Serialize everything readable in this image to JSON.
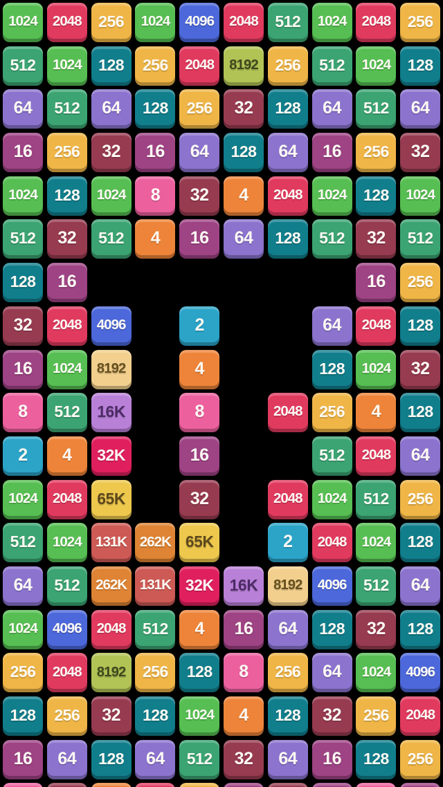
{
  "board": {
    "columns": 10,
    "visible_full_rows": 18,
    "background_color": "#000000",
    "palette": {
      "v2": {
        "bg": "#2BA4C8",
        "text": "#FCF9F4"
      },
      "v4": {
        "bg": "#ED8439",
        "text": "#FCF9F4"
      },
      "v8": {
        "bg": "#EC609E",
        "text": "#FCF9F4"
      },
      "v16": {
        "bg": "#9E4384",
        "text": "#FCF9F4"
      },
      "v32": {
        "bg": "#973B50",
        "text": "#FCF9F4"
      },
      "v64": {
        "bg": "#8B73CE",
        "text": "#FCF9F4"
      },
      "v128": {
        "bg": "#117E8C",
        "text": "#FCF9F4"
      },
      "v256": {
        "bg": "#EFB546",
        "text": "#FCF9F4"
      },
      "v512": {
        "bg": "#3BA472",
        "text": "#FCF9F4"
      },
      "v1024": {
        "bg": "#56BE52",
        "text": "#FCF9F4"
      },
      "v2048": {
        "bg": "#E13A5F",
        "text": "#FCF9F4"
      },
      "v4096": {
        "bg": "#4C68DA",
        "text": "#FCF9F4"
      },
      "v8192o": {
        "bg": "#B2C355",
        "text": "#3E491D"
      },
      "v8192t": {
        "bg": "#F2CF8D",
        "text": "#66501E"
      },
      "v16k": {
        "bg": "#B980D8",
        "text": "#4D2B66"
      },
      "v32k": {
        "bg": "#E0205E",
        "text": "#FCF9F4"
      },
      "v65k": {
        "bg": "#EDC84D",
        "text": "#5E481C"
      },
      "v131k": {
        "bg": "#CD5A55",
        "text": "#FCF9F4"
      },
      "v262k": {
        "bg": "#DE8434",
        "text": "#FCF9F4"
      }
    },
    "rows": [
      {
        "cells": [
          {
            "v": "1024",
            "c": "v1024"
          },
          {
            "v": "2048",
            "c": "v2048"
          },
          {
            "v": "256",
            "c": "v256"
          },
          {
            "v": "1024",
            "c": "v1024"
          },
          {
            "v": "4096",
            "c": "v4096"
          },
          {
            "v": "2048",
            "c": "v2048"
          },
          {
            "v": "512",
            "c": "v512"
          },
          {
            "v": "1024",
            "c": "v1024"
          },
          {
            "v": "2048",
            "c": "v2048"
          },
          {
            "v": "256",
            "c": "v256"
          }
        ]
      },
      {
        "cells": [
          {
            "v": "512",
            "c": "v512"
          },
          {
            "v": "1024",
            "c": "v1024"
          },
          {
            "v": "128",
            "c": "v128"
          },
          {
            "v": "256",
            "c": "v256"
          },
          {
            "v": "2048",
            "c": "v2048"
          },
          {
            "v": "8192",
            "c": "v8192o"
          },
          {
            "v": "256",
            "c": "v256"
          },
          {
            "v": "512",
            "c": "v512"
          },
          {
            "v": "1024",
            "c": "v1024"
          },
          {
            "v": "128",
            "c": "v128"
          }
        ]
      },
      {
        "cells": [
          {
            "v": "64",
            "c": "v64"
          },
          {
            "v": "512",
            "c": "v512"
          },
          {
            "v": "64",
            "c": "v64"
          },
          {
            "v": "128",
            "c": "v128"
          },
          {
            "v": "256",
            "c": "v256"
          },
          {
            "v": "32",
            "c": "v32"
          },
          {
            "v": "128",
            "c": "v128"
          },
          {
            "v": "64",
            "c": "v64"
          },
          {
            "v": "512",
            "c": "v512"
          },
          {
            "v": "64",
            "c": "v64"
          }
        ]
      },
      {
        "cells": [
          {
            "v": "16",
            "c": "v16"
          },
          {
            "v": "256",
            "c": "v256"
          },
          {
            "v": "32",
            "c": "v32"
          },
          {
            "v": "16",
            "c": "v16"
          },
          {
            "v": "64",
            "c": "v64"
          },
          {
            "v": "128",
            "c": "v128"
          },
          {
            "v": "64",
            "c": "v64"
          },
          {
            "v": "16",
            "c": "v16"
          },
          {
            "v": "256",
            "c": "v256"
          },
          {
            "v": "32",
            "c": "v32"
          }
        ]
      },
      {
        "cells": [
          {
            "v": "1024",
            "c": "v1024"
          },
          {
            "v": "128",
            "c": "v128"
          },
          {
            "v": "1024",
            "c": "v1024"
          },
          {
            "v": "8",
            "c": "v8"
          },
          {
            "v": "32",
            "c": "v32"
          },
          {
            "v": "4",
            "c": "v4"
          },
          {
            "v": "2048",
            "c": "v2048"
          },
          {
            "v": "1024",
            "c": "v1024"
          },
          {
            "v": "128",
            "c": "v128"
          },
          {
            "v": "1024",
            "c": "v1024"
          }
        ]
      },
      {
        "cells": [
          {
            "v": "512",
            "c": "v512"
          },
          {
            "v": "32",
            "c": "v32"
          },
          {
            "v": "512",
            "c": "v512"
          },
          {
            "v": "4",
            "c": "v4"
          },
          {
            "v": "16",
            "c": "v16"
          },
          {
            "v": "64",
            "c": "v64"
          },
          {
            "v": "128",
            "c": "v128"
          },
          {
            "v": "512",
            "c": "v512"
          },
          {
            "v": "32",
            "c": "v32"
          },
          {
            "v": "512",
            "c": "v512"
          }
        ]
      },
      {
        "cells": [
          {
            "v": "128",
            "c": "v128"
          },
          {
            "v": "16",
            "c": "v16"
          },
          null,
          null,
          null,
          null,
          null,
          null,
          {
            "v": "16",
            "c": "v16"
          },
          {
            "v": "256",
            "c": "v256"
          }
        ]
      },
      {
        "cells": [
          {
            "v": "32",
            "c": "v32"
          },
          {
            "v": "2048",
            "c": "v2048"
          },
          {
            "v": "4096",
            "c": "v4096"
          },
          null,
          {
            "v": "2",
            "c": "v2"
          },
          null,
          null,
          {
            "v": "64",
            "c": "v64"
          },
          {
            "v": "2048",
            "c": "v2048"
          },
          {
            "v": "128",
            "c": "v128"
          }
        ]
      },
      {
        "cells": [
          {
            "v": "16",
            "c": "v16"
          },
          {
            "v": "1024",
            "c": "v1024"
          },
          {
            "v": "8192",
            "c": "v8192t"
          },
          null,
          {
            "v": "4",
            "c": "v4"
          },
          null,
          null,
          {
            "v": "128",
            "c": "v128"
          },
          {
            "v": "1024",
            "c": "v1024"
          },
          {
            "v": "32",
            "c": "v32"
          }
        ]
      },
      {
        "cells": [
          {
            "v": "8",
            "c": "v8"
          },
          {
            "v": "512",
            "c": "v512"
          },
          {
            "v": "16K",
            "c": "v16k"
          },
          null,
          {
            "v": "8",
            "c": "v8"
          },
          null,
          {
            "v": "2048",
            "c": "v2048"
          },
          {
            "v": "256",
            "c": "v256"
          },
          {
            "v": "4",
            "c": "v4"
          },
          {
            "v": "128",
            "c": "v128"
          }
        ]
      },
      {
        "cells": [
          {
            "v": "2",
            "c": "v2"
          },
          {
            "v": "4",
            "c": "v4"
          },
          {
            "v": "32K",
            "c": "v32k"
          },
          null,
          {
            "v": "16",
            "c": "v16"
          },
          null,
          null,
          {
            "v": "512",
            "c": "v512"
          },
          {
            "v": "2048",
            "c": "v2048"
          },
          {
            "v": "64",
            "c": "v64"
          }
        ]
      },
      {
        "cells": [
          {
            "v": "1024",
            "c": "v1024"
          },
          {
            "v": "2048",
            "c": "v2048"
          },
          {
            "v": "65K",
            "c": "v65k"
          },
          null,
          {
            "v": "32",
            "c": "v32"
          },
          null,
          {
            "v": "2048",
            "c": "v2048"
          },
          {
            "v": "1024",
            "c": "v1024"
          },
          {
            "v": "512",
            "c": "v512"
          },
          {
            "v": "256",
            "c": "v256"
          }
        ]
      },
      {
        "cells": [
          {
            "v": "512",
            "c": "v512"
          },
          {
            "v": "1024",
            "c": "v1024"
          },
          {
            "v": "131K",
            "c": "v131k"
          },
          {
            "v": "262K",
            "c": "v262k"
          },
          {
            "v": "65K",
            "c": "v65k"
          },
          null,
          {
            "v": "2",
            "c": "v2"
          },
          {
            "v": "2048",
            "c": "v2048"
          },
          {
            "v": "1024",
            "c": "v1024"
          },
          {
            "v": "128",
            "c": "v128"
          }
        ]
      },
      {
        "cells": [
          {
            "v": "64",
            "c": "v64"
          },
          {
            "v": "512",
            "c": "v512"
          },
          {
            "v": "262K",
            "c": "v262k"
          },
          {
            "v": "131K",
            "c": "v131k"
          },
          {
            "v": "32K",
            "c": "v32k"
          },
          {
            "v": "16K",
            "c": "v16k"
          },
          {
            "v": "8192",
            "c": "v8192t"
          },
          {
            "v": "4096",
            "c": "v4096"
          },
          {
            "v": "512",
            "c": "v512"
          },
          {
            "v": "64",
            "c": "v64"
          }
        ]
      },
      {
        "cells": [
          {
            "v": "1024",
            "c": "v1024"
          },
          {
            "v": "4096",
            "c": "v4096"
          },
          {
            "v": "2048",
            "c": "v2048"
          },
          {
            "v": "512",
            "c": "v512"
          },
          {
            "v": "4",
            "c": "v4"
          },
          {
            "v": "16",
            "c": "v16"
          },
          {
            "v": "64",
            "c": "v64"
          },
          {
            "v": "128",
            "c": "v128"
          },
          {
            "v": "32",
            "c": "v32"
          },
          {
            "v": "128",
            "c": "v128"
          }
        ]
      },
      {
        "cells": [
          {
            "v": "256",
            "c": "v256"
          },
          {
            "v": "2048",
            "c": "v2048"
          },
          {
            "v": "8192",
            "c": "v8192o"
          },
          {
            "v": "256",
            "c": "v256"
          },
          {
            "v": "128",
            "c": "v128"
          },
          {
            "v": "8",
            "c": "v8"
          },
          {
            "v": "256",
            "c": "v256"
          },
          {
            "v": "64",
            "c": "v64"
          },
          {
            "v": "1024",
            "c": "v1024"
          },
          {
            "v": "4096",
            "c": "v4096"
          }
        ]
      },
      {
        "cells": [
          {
            "v": "128",
            "c": "v128"
          },
          {
            "v": "256",
            "c": "v256"
          },
          {
            "v": "32",
            "c": "v32"
          },
          {
            "v": "128",
            "c": "v128"
          },
          {
            "v": "1024",
            "c": "v1024"
          },
          {
            "v": "4",
            "c": "v4"
          },
          {
            "v": "128",
            "c": "v128"
          },
          {
            "v": "32",
            "c": "v32"
          },
          {
            "v": "256",
            "c": "v256"
          },
          {
            "v": "2048",
            "c": "v2048"
          }
        ]
      },
      {
        "cells": [
          {
            "v": "16",
            "c": "v16"
          },
          {
            "v": "64",
            "c": "v64"
          },
          {
            "v": "128",
            "c": "v128"
          },
          {
            "v": "64",
            "c": "v64"
          },
          {
            "v": "512",
            "c": "v512"
          },
          {
            "v": "32",
            "c": "v32"
          },
          {
            "v": "64",
            "c": "v64"
          },
          {
            "v": "16",
            "c": "v16"
          },
          {
            "v": "128",
            "c": "v128"
          },
          {
            "v": "256",
            "c": "v256"
          }
        ]
      },
      {
        "cells": [
          {
            "v": "",
            "c": "v8"
          },
          {
            "v": "",
            "c": "v32"
          },
          {
            "v": "",
            "c": "v4"
          },
          {
            "v": "",
            "c": "v2048"
          },
          {
            "v": "",
            "c": "v256"
          },
          {
            "v": "",
            "c": "v16"
          },
          {
            "v": "",
            "c": "v32"
          },
          {
            "v": "",
            "c": "v16"
          },
          {
            "v": "",
            "c": "v8"
          },
          {
            "v": "",
            "c": "v16"
          }
        ]
      }
    ]
  }
}
